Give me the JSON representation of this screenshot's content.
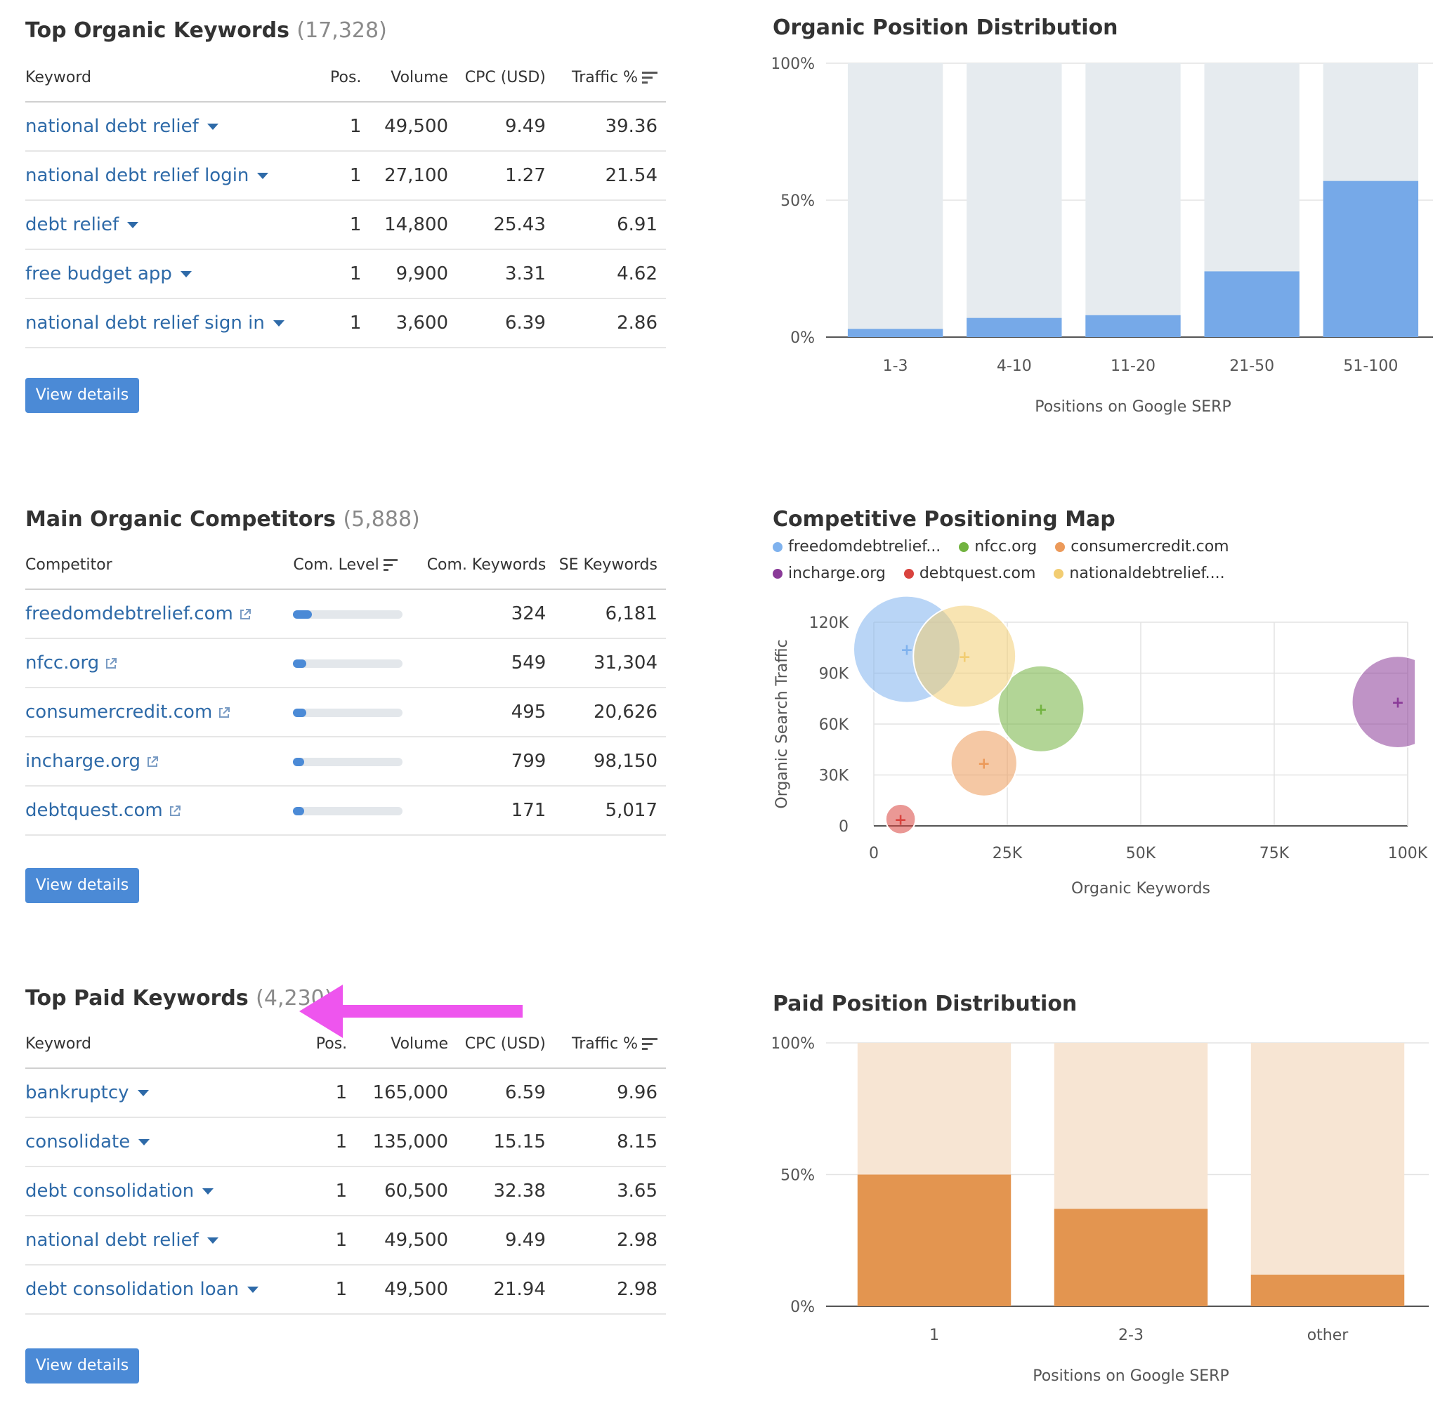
{
  "organic_keywords": {
    "title": "Top Organic Keywords",
    "count": "(17,328)",
    "columns": [
      "Keyword",
      "Pos.",
      "Volume",
      "CPC (USD)",
      "Traffic %"
    ],
    "rows": [
      {
        "keyword": "national debt relief",
        "pos": "1",
        "volume": "49,500",
        "cpc": "9.49",
        "traffic": "39.36"
      },
      {
        "keyword": "national debt relief login",
        "pos": "1",
        "volume": "27,100",
        "cpc": "1.27",
        "traffic": "21.54"
      },
      {
        "keyword": "debt relief",
        "pos": "1",
        "volume": "14,800",
        "cpc": "25.43",
        "traffic": "6.91"
      },
      {
        "keyword": "free budget app",
        "pos": "1",
        "volume": "9,900",
        "cpc": "3.31",
        "traffic": "4.62"
      },
      {
        "keyword": "national debt relief sign in",
        "pos": "1",
        "volume": "3,600",
        "cpc": "6.39",
        "traffic": "2.86"
      }
    ],
    "button": "View details"
  },
  "competitors": {
    "title": "Main Organic Competitors",
    "count": "(5,888)",
    "columns": [
      "Competitor",
      "Com. Level",
      "Com. Keywords",
      "SE Keywords"
    ],
    "rows": [
      {
        "domain": "freedomdebtrelief.com",
        "level": 0.17,
        "com_keywords": "324",
        "se_keywords": "6,181"
      },
      {
        "domain": "nfcc.org",
        "level": 0.12,
        "com_keywords": "549",
        "se_keywords": "31,304"
      },
      {
        "domain": "consumercredit.com",
        "level": 0.12,
        "com_keywords": "495",
        "se_keywords": "20,626"
      },
      {
        "domain": "incharge.org",
        "level": 0.1,
        "com_keywords": "799",
        "se_keywords": "98,150"
      },
      {
        "domain": "debtquest.com",
        "level": 0.1,
        "com_keywords": "171",
        "se_keywords": "5,017"
      }
    ],
    "button": "View details"
  },
  "paid_keywords": {
    "title": "Top Paid Keywords",
    "count": "(4,230)",
    "columns": [
      "Keyword",
      "Pos.",
      "Volume",
      "CPC (USD)",
      "Traffic %"
    ],
    "rows": [
      {
        "keyword": "bankruptcy",
        "pos": "1",
        "volume": "165,000",
        "cpc": "6.59",
        "traffic": "9.96"
      },
      {
        "keyword": "consolidate",
        "pos": "1",
        "volume": "135,000",
        "cpc": "15.15",
        "traffic": "8.15"
      },
      {
        "keyword": "debt consolidation",
        "pos": "1",
        "volume": "60,500",
        "cpc": "32.38",
        "traffic": "3.65"
      },
      {
        "keyword": "national debt relief",
        "pos": "1",
        "volume": "49,500",
        "cpc": "9.49",
        "traffic": "2.98"
      },
      {
        "keyword": "debt consolidation loan",
        "pos": "1",
        "volume": "49,500",
        "cpc": "21.94",
        "traffic": "2.98"
      }
    ],
    "button": "View details"
  },
  "annotation": {
    "arrow_color": "#ee55ee"
  },
  "chart_data": [
    {
      "type": "bar",
      "title": "Organic Position Distribution",
      "categories": [
        "1-3",
        "4-10",
        "11-20",
        "21-50",
        "51-100"
      ],
      "values": [
        3,
        7,
        8,
        24,
        57
      ],
      "ytick_labels": [
        "0%",
        "50%",
        "100%"
      ],
      "ylim": [
        0,
        100
      ],
      "xlabel": "Positions on Google SERP",
      "ylabel": "",
      "bar_color": "#76a9e8",
      "background_color": "#e6ebef"
    },
    {
      "type": "scatter",
      "title": "Competitive Positioning Map",
      "xlabel": "Organic Keywords",
      "ylabel": "Organic Search Traffic",
      "x_tick_labels": [
        "0",
        "25K",
        "50K",
        "75K",
        "100K"
      ],
      "y_tick_labels": [
        "0",
        "30K",
        "60K",
        "90K",
        "120K"
      ],
      "xlim": [
        0,
        100000
      ],
      "ylim": [
        0,
        120000
      ],
      "grid": true,
      "legend_position": "top",
      "series": [
        {
          "name": "freedomdebtrelief...",
          "color": "#7fb2ee",
          "x": 6181,
          "y": 104000,
          "size": 1.0
        },
        {
          "name": "nfcc.org",
          "color": "#72b340",
          "x": 31304,
          "y": 69000,
          "size": 0.81
        },
        {
          "name": "consumercredit.com",
          "color": "#ec9a5a",
          "x": 20626,
          "y": 37000,
          "size": 0.62
        },
        {
          "name": "incharge.org",
          "color": "#8a3a98",
          "x": 98150,
          "y": 73000,
          "size": 0.86
        },
        {
          "name": "debtquest.com",
          "color": "#d9433e",
          "x": 5017,
          "y": 4000,
          "size": 0.28
        },
        {
          "name": "nationaldebtrelief....",
          "color": "#f2cd72",
          "x": 17000,
          "y": 100000,
          "size": 0.96
        }
      ]
    },
    {
      "type": "bar",
      "title": "Paid Position Distribution",
      "categories": [
        "1",
        "2-3",
        "other"
      ],
      "values": [
        50,
        37,
        12
      ],
      "ytick_labels": [
        "0%",
        "50%",
        "100%"
      ],
      "ylim": [
        0,
        100
      ],
      "xlabel": "Positions on Google SERP",
      "ylabel": "",
      "bar_color": "#e39550",
      "background_color": "#f7e5d3"
    }
  ]
}
